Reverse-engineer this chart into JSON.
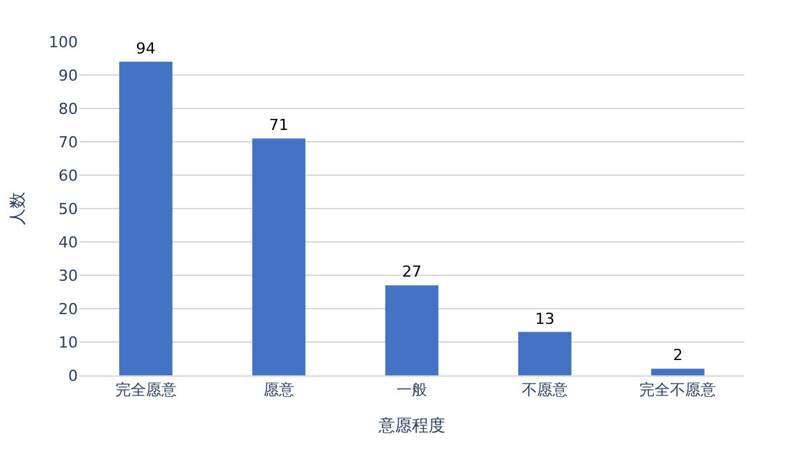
{
  "chart_data": {
    "type": "bar",
    "xlabel": "意愿程度",
    "ylabel": "人数",
    "categories": [
      "完全愿意",
      "愿意",
      "一般",
      "不愿意",
      "完全不愿意"
    ],
    "values": [
      94,
      71,
      27,
      13,
      2
    ],
    "color": "#4472c4",
    "ylim": [
      0,
      100
    ],
    "yticks": [
      0,
      10,
      20,
      30,
      40,
      50,
      60,
      70,
      80,
      90,
      100
    ],
    "grid": "y",
    "data_labels": true
  }
}
